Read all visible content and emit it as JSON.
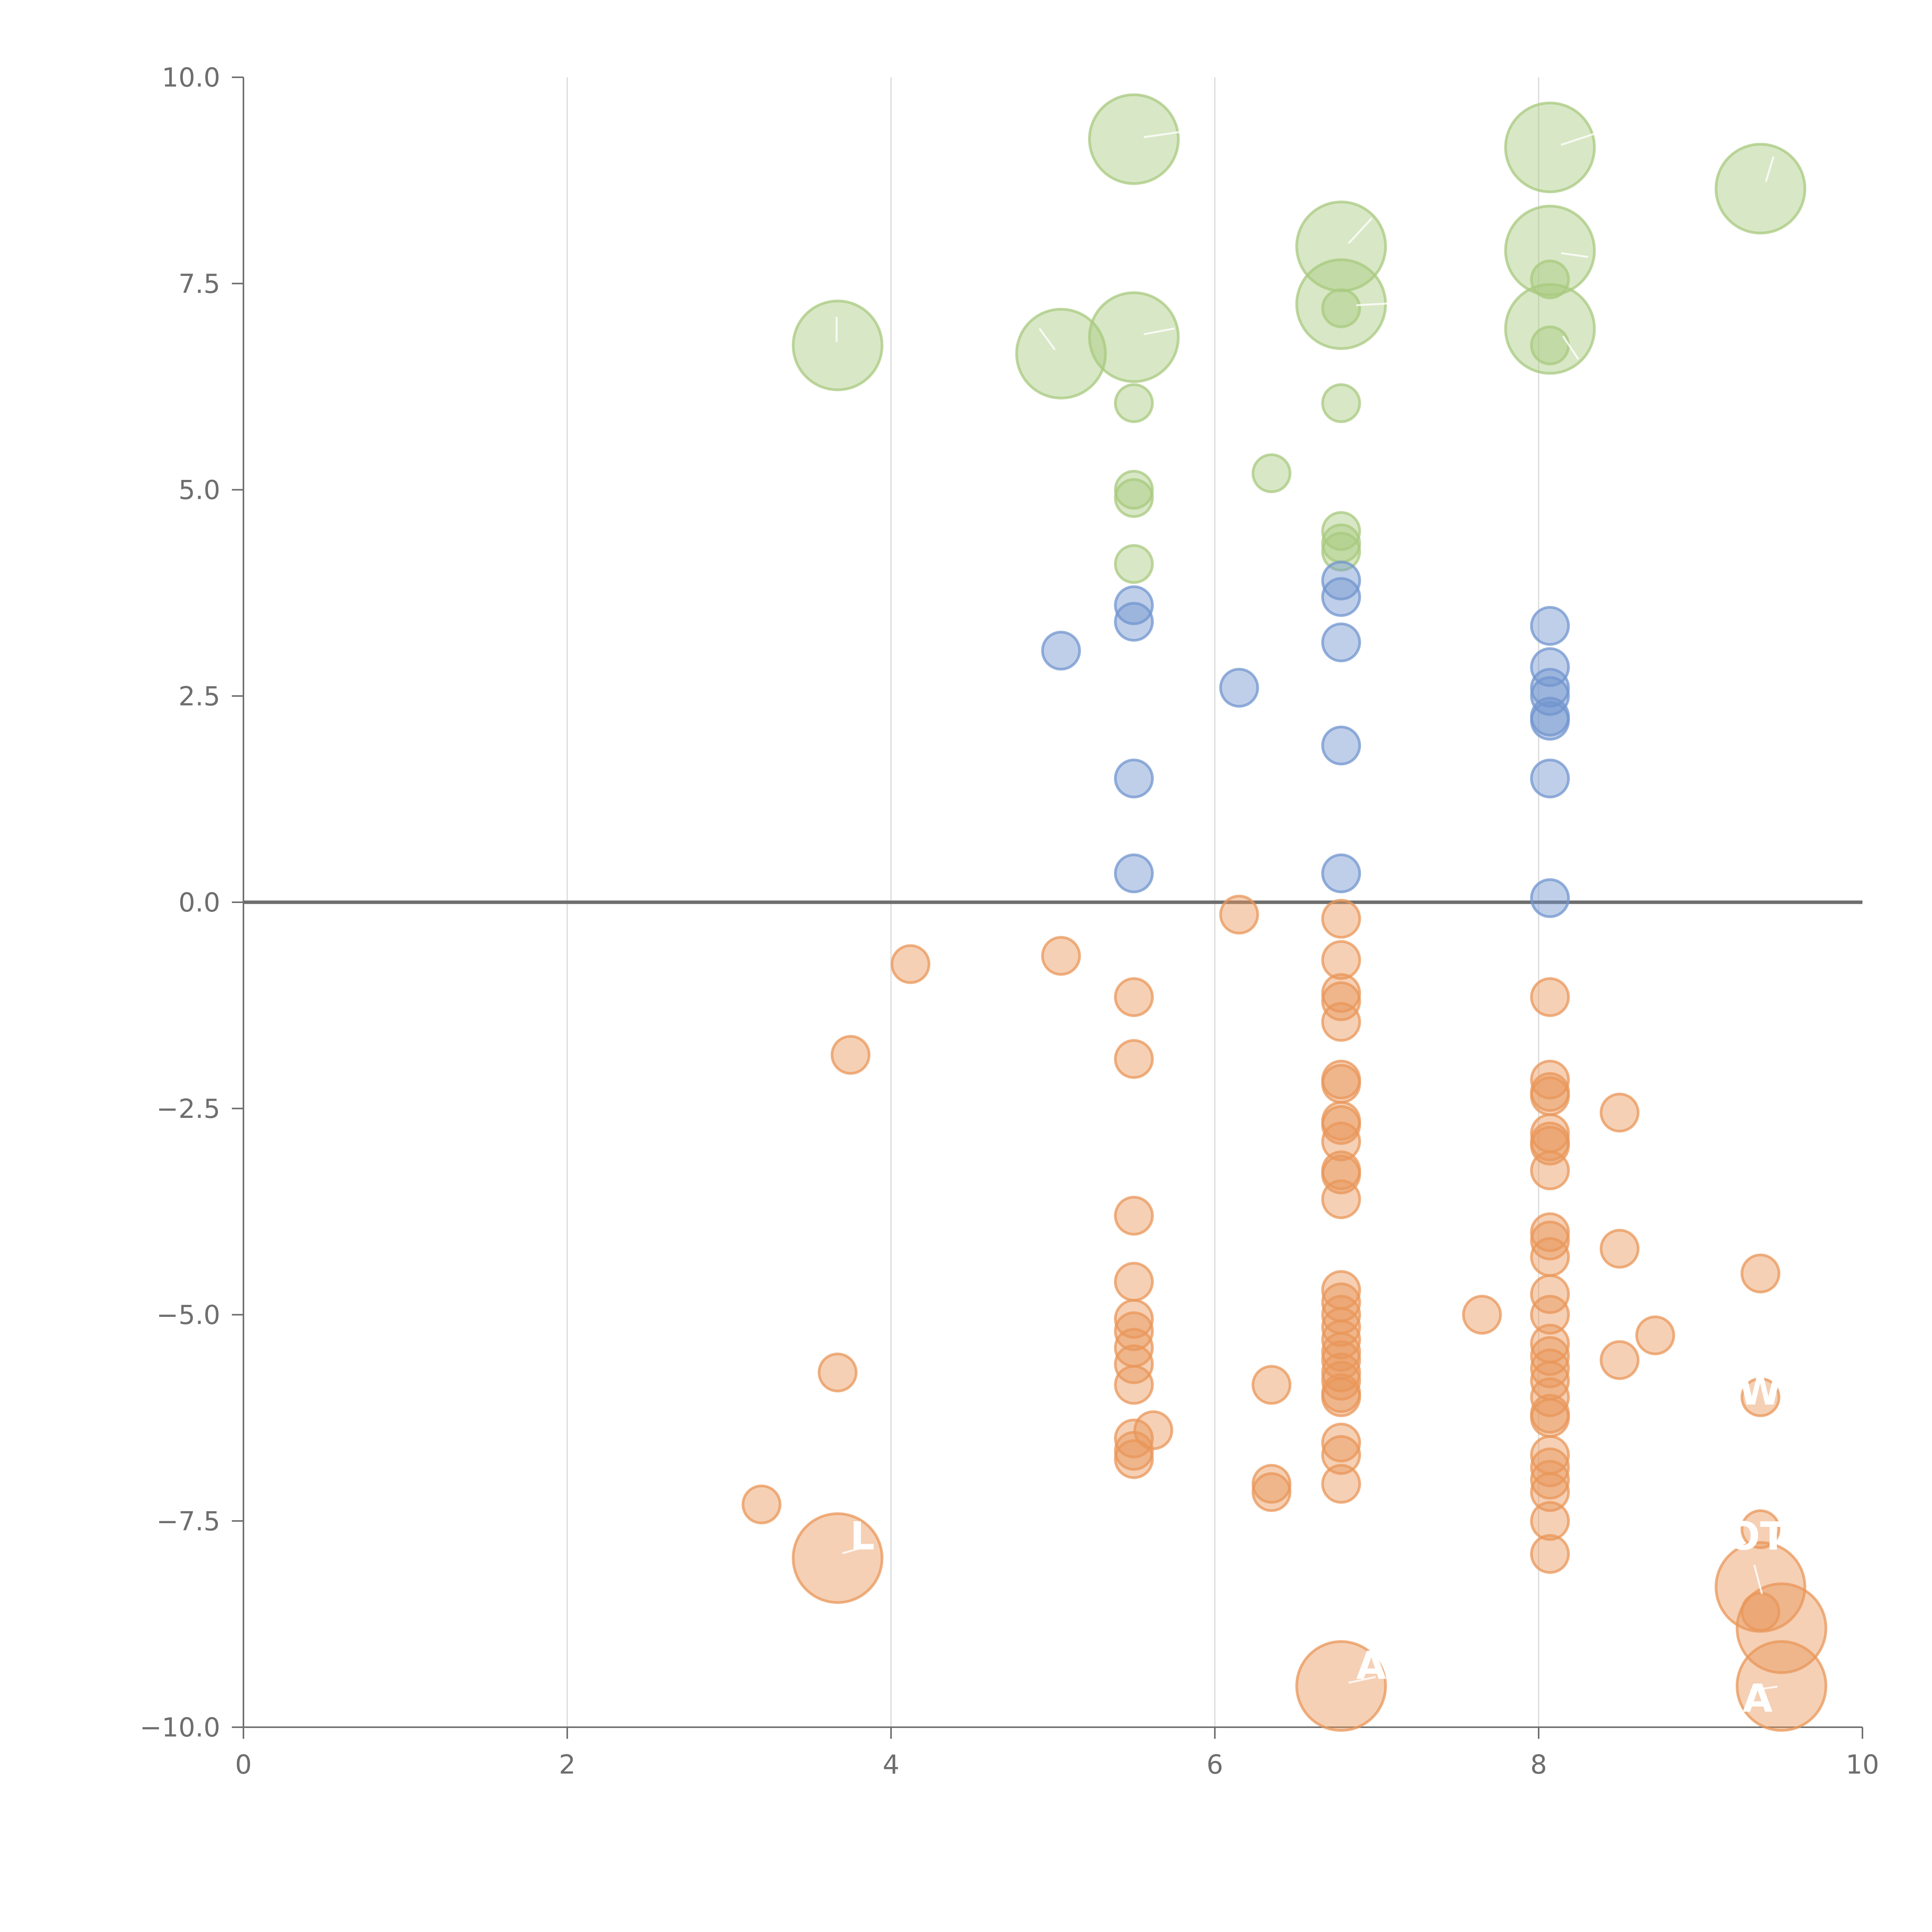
{
  "colors": {
    "green": "#a8c97f",
    "blue": "#7295cf",
    "orange": "#e9975a",
    "axis": "#6e6e6e",
    "grid": "#d9d9d9"
  },
  "chart_data": {
    "type": "scatter",
    "title": "",
    "xlabel": "",
    "ylabel": "",
    "xlim": [
      0,
      10
    ],
    "ylim": [
      -10,
      10
    ],
    "xticks": [
      0,
      2,
      4,
      6,
      8,
      10
    ],
    "yticks": [
      10,
      7.5,
      5,
      2.5,
      0,
      -2.5,
      -5,
      -7.5,
      -10
    ],
    "xtick_labels": [
      "0",
      "2",
      "4",
      "6",
      "8",
      "10"
    ],
    "ytick_labels": [
      "10.0",
      "7.5",
      "5.0",
      "2.5",
      "0.0",
      "−2.5",
      "−5.0",
      "−7.5",
      "−10.0"
    ],
    "grid_x": true,
    "grid_y": false,
    "zero_line": true,
    "series": [
      {
        "color": "green",
        "points": [
          {
            "x": 5.5,
            "y": 9.25,
            "s": "large"
          },
          {
            "x": 8.07,
            "y": 9.15,
            "s": "large"
          },
          {
            "x": 9.37,
            "y": 8.65,
            "s": "large"
          },
          {
            "x": 6.78,
            "y": 7.95,
            "s": "large"
          },
          {
            "x": 8.07,
            "y": 7.9,
            "s": "large"
          },
          {
            "x": 8.07,
            "y": 7.55,
            "s": "small"
          },
          {
            "x": 6.78,
            "y": 7.25,
            "s": "large"
          },
          {
            "x": 6.78,
            "y": 7.2,
            "s": "small"
          },
          {
            "x": 8.07,
            "y": 6.95,
            "s": "large"
          },
          {
            "x": 8.07,
            "y": 6.75,
            "s": "small"
          },
          {
            "x": 3.67,
            "y": 6.75,
            "s": "large"
          },
          {
            "x": 5.5,
            "y": 6.85,
            "s": "large"
          },
          {
            "x": 5.05,
            "y": 6.65,
            "s": "large"
          },
          {
            "x": 5.5,
            "y": 6.05,
            "s": "small"
          },
          {
            "x": 6.78,
            "y": 6.05,
            "s": "small"
          },
          {
            "x": 6.35,
            "y": 5.2,
            "s": "small"
          },
          {
            "x": 5.5,
            "y": 5.0,
            "s": "small"
          },
          {
            "x": 5.5,
            "y": 4.9,
            "s": "small"
          },
          {
            "x": 6.78,
            "y": 4.5,
            "s": "small"
          },
          {
            "x": 6.78,
            "y": 4.35,
            "s": "small"
          },
          {
            "x": 6.78,
            "y": 4.25,
            "s": "small"
          },
          {
            "x": 5.5,
            "y": 4.1,
            "s": "small"
          }
        ]
      },
      {
        "color": "blue",
        "points": [
          {
            "x": 6.78,
            "y": 3.9
          },
          {
            "x": 6.78,
            "y": 3.7
          },
          {
            "x": 5.5,
            "y": 3.6
          },
          {
            "x": 5.5,
            "y": 3.4
          },
          {
            "x": 8.07,
            "y": 3.35
          },
          {
            "x": 6.78,
            "y": 3.15
          },
          {
            "x": 5.05,
            "y": 3.05
          },
          {
            "x": 8.07,
            "y": 2.85
          },
          {
            "x": 8.07,
            "y": 2.6
          },
          {
            "x": 6.15,
            "y": 2.6
          },
          {
            "x": 8.07,
            "y": 2.5
          },
          {
            "x": 8.07,
            "y": 2.25
          },
          {
            "x": 8.07,
            "y": 2.2
          },
          {
            "x": 6.78,
            "y": 1.9
          },
          {
            "x": 5.5,
            "y": 1.5
          },
          {
            "x": 8.07,
            "y": 1.5
          },
          {
            "x": 6.78,
            "y": 0.35
          },
          {
            "x": 5.5,
            "y": 0.35
          },
          {
            "x": 8.07,
            "y": 0.05
          }
        ]
      },
      {
        "color": "orange",
        "points": [
          {
            "x": 6.15,
            "y": -0.15,
            "s": "small"
          },
          {
            "x": 6.78,
            "y": -0.2,
            "s": "small"
          },
          {
            "x": 5.05,
            "y": -0.65,
            "s": "small"
          },
          {
            "x": 4.12,
            "y": -0.75,
            "s": "small"
          },
          {
            "x": 6.78,
            "y": -0.7,
            "s": "small"
          },
          {
            "x": 6.78,
            "y": -1.1,
            "s": "small"
          },
          {
            "x": 6.78,
            "y": -1.2,
            "s": "small"
          },
          {
            "x": 5.5,
            "y": -1.15,
            "s": "small"
          },
          {
            "x": 8.07,
            "y": -1.15,
            "s": "small"
          },
          {
            "x": 6.78,
            "y": -1.45,
            "s": "small"
          },
          {
            "x": 3.75,
            "y": -1.85,
            "s": "small"
          },
          {
            "x": 5.5,
            "y": -1.9,
            "s": "small"
          },
          {
            "x": 6.78,
            "y": -2.15,
            "s": "small"
          },
          {
            "x": 6.78,
            "y": -2.2,
            "s": "small"
          },
          {
            "x": 8.07,
            "y": -2.15,
            "s": "small"
          },
          {
            "x": 8.07,
            "y": -2.3,
            "s": "small"
          },
          {
            "x": 8.07,
            "y": -2.35,
            "s": "small"
          },
          {
            "x": 8.5,
            "y": -2.55,
            "s": "small"
          },
          {
            "x": 6.78,
            "y": -2.65,
            "s": "small"
          },
          {
            "x": 6.78,
            "y": -2.7,
            "s": "small"
          },
          {
            "x": 6.78,
            "y": -2.9,
            "s": "small"
          },
          {
            "x": 8.07,
            "y": -2.8,
            "s": "small"
          },
          {
            "x": 8.07,
            "y": -2.9,
            "s": "small"
          },
          {
            "x": 8.07,
            "y": -2.95,
            "s": "small"
          },
          {
            "x": 6.78,
            "y": -3.25,
            "s": "small"
          },
          {
            "x": 6.78,
            "y": -3.3,
            "s": "small"
          },
          {
            "x": 8.07,
            "y": -3.25,
            "s": "small"
          },
          {
            "x": 6.78,
            "y": -3.6,
            "s": "small"
          },
          {
            "x": 5.5,
            "y": -3.8,
            "s": "small"
          },
          {
            "x": 8.07,
            "y": -4.0,
            "s": "small"
          },
          {
            "x": 8.07,
            "y": -4.1,
            "s": "small"
          },
          {
            "x": 8.07,
            "y": -4.3,
            "s": "small"
          },
          {
            "x": 8.5,
            "y": -4.2,
            "s": "small"
          },
          {
            "x": 9.37,
            "y": -4.5,
            "s": "small"
          },
          {
            "x": 5.5,
            "y": -4.6,
            "s": "small"
          },
          {
            "x": 6.78,
            "y": -4.7,
            "s": "small"
          },
          {
            "x": 6.78,
            "y": -4.85,
            "s": "small"
          },
          {
            "x": 8.07,
            "y": -4.75,
            "s": "small"
          },
          {
            "x": 6.78,
            "y": -5.0,
            "s": "small"
          },
          {
            "x": 7.65,
            "y": -5.0,
            "s": "small"
          },
          {
            "x": 8.07,
            "y": -5.0,
            "s": "small"
          },
          {
            "x": 5.5,
            "y": -5.05,
            "s": "small"
          },
          {
            "x": 6.78,
            "y": -5.15,
            "s": "small"
          },
          {
            "x": 5.5,
            "y": -5.2,
            "s": "small"
          },
          {
            "x": 8.72,
            "y": -5.25,
            "s": "small"
          },
          {
            "x": 6.78,
            "y": -5.3,
            "s": "small"
          },
          {
            "x": 5.5,
            "y": -5.4,
            "s": "small"
          },
          {
            "x": 8.07,
            "y": -5.35,
            "s": "small"
          },
          {
            "x": 6.78,
            "y": -5.45,
            "s": "small"
          },
          {
            "x": 8.07,
            "y": -5.5,
            "s": "small"
          },
          {
            "x": 6.78,
            "y": -5.55,
            "s": "small"
          },
          {
            "x": 8.5,
            "y": -5.55,
            "s": "small"
          },
          {
            "x": 5.5,
            "y": -5.6,
            "s": "small"
          },
          {
            "x": 8.07,
            "y": -5.65,
            "s": "small"
          },
          {
            "x": 3.67,
            "y": -5.7,
            "s": "small"
          },
          {
            "x": 6.78,
            "y": -5.7,
            "s": "small"
          },
          {
            "x": 6.78,
            "y": -5.8,
            "s": "small"
          },
          {
            "x": 8.07,
            "y": -5.8,
            "s": "small"
          },
          {
            "x": 5.5,
            "y": -5.85,
            "s": "small"
          },
          {
            "x": 6.35,
            "y": -5.85,
            "s": "small"
          },
          {
            "x": 6.78,
            "y": -5.95,
            "s": "small"
          },
          {
            "x": 6.78,
            "y": -6.0,
            "s": "small"
          },
          {
            "x": 8.07,
            "y": -6.0,
            "s": "small"
          },
          {
            "x": 9.37,
            "y": -6.0,
            "s": "small"
          },
          {
            "x": 8.07,
            "y": -6.2,
            "s": "small"
          },
          {
            "x": 8.07,
            "y": -6.25,
            "s": "small"
          },
          {
            "x": 5.62,
            "y": -6.4,
            "s": "small"
          },
          {
            "x": 5.5,
            "y": -6.5,
            "s": "small"
          },
          {
            "x": 6.78,
            "y": -6.55,
            "s": "small"
          },
          {
            "x": 5.5,
            "y": -6.65,
            "s": "small"
          },
          {
            "x": 8.07,
            "y": -6.7,
            "s": "small"
          },
          {
            "x": 5.5,
            "y": -6.75,
            "s": "small"
          },
          {
            "x": 6.78,
            "y": -6.7,
            "s": "small"
          },
          {
            "x": 8.07,
            "y": -6.85,
            "s": "small"
          },
          {
            "x": 6.78,
            "y": -7.05,
            "s": "small"
          },
          {
            "x": 6.35,
            "y": -7.05,
            "s": "small"
          },
          {
            "x": 8.07,
            "y": -7.0,
            "s": "small"
          },
          {
            "x": 8.07,
            "y": -7.15,
            "s": "small"
          },
          {
            "x": 6.35,
            "y": -7.15,
            "s": "small"
          },
          {
            "x": 3.2,
            "y": -7.3,
            "s": "small"
          },
          {
            "x": 8.07,
            "y": -7.5,
            "s": "small"
          },
          {
            "x": 9.37,
            "y": -7.6,
            "s": "small"
          },
          {
            "x": 8.07,
            "y": -7.9,
            "s": "small"
          },
          {
            "x": 3.67,
            "y": -7.95,
            "s": "large"
          },
          {
            "x": 9.37,
            "y": -8.3,
            "s": "large"
          },
          {
            "x": 9.37,
            "y": -8.6,
            "s": "small"
          },
          {
            "x": 9.5,
            "y": -8.8,
            "s": "large"
          },
          {
            "x": 6.78,
            "y": -9.5,
            "s": "large"
          },
          {
            "x": 9.5,
            "y": -9.5,
            "s": "large"
          }
        ]
      }
    ]
  }
}
